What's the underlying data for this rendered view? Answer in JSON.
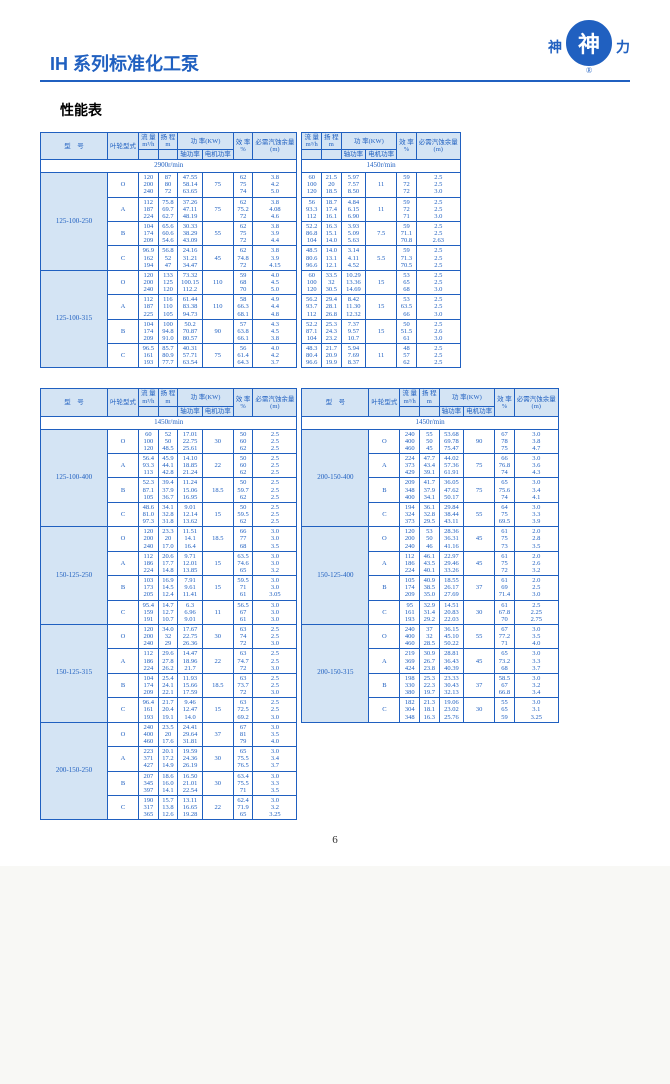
{
  "brand": {
    "left_char": "神",
    "center_char": "神",
    "right_char": "力"
  },
  "heading": "IH 系列标准化工泵",
  "subheading": "性能表",
  "page_number": "6",
  "headers": {
    "model": "型　号",
    "impeller": "叶轮型式",
    "flow": "流 量",
    "flow_unit": "m³/h",
    "head": "扬 程",
    "head_unit": "m",
    "power": "功 率(KW)",
    "shaft_power": "轴功率",
    "motor_power": "电机功率",
    "eff": "效 率",
    "eff_unit": "%",
    "npsh": "必需汽蚀余量",
    "npsh_unit": "(m)"
  },
  "rpm": {
    "r2900": "2900r/min",
    "r1450": "1450r/min"
  },
  "colors": {
    "border": "#2060c0",
    "header_bg": "#d4e4f4",
    "text": "#2060c0"
  },
  "top_left": {
    "models": [
      {
        "name": "125-100-250",
        "rows": [
          {
            "imp": "O",
            "flow": "120\n200\n240",
            "head": "87\n80\n72",
            "sp": "47.55\n58.14\n63.65",
            "mp": "75",
            "eff": "62\n75\n74",
            "npsh": "3.8\n4.2\n5.0"
          },
          {
            "imp": "A",
            "flow": "112\n187\n224",
            "head": "75.8\n69.7\n62.7",
            "sp": "37.26\n47.11\n48.19",
            "mp": "75",
            "eff": "62\n75.2\n72",
            "npsh": "3.8\n4.08\n4.6"
          },
          {
            "imp": "B",
            "flow": "104\n174\n209",
            "head": "65.6\n60.6\n54.6",
            "sp": "30.33\n38.29\n43.09",
            "mp": "55",
            "eff": "62\n75\n72",
            "npsh": "3.8\n3.9\n4.4"
          },
          {
            "imp": "C",
            "flow": "96.9\n162\n194",
            "head": "56.8\n52\n47",
            "sp": "24.16\n31.21\n34.47",
            "mp": "45",
            "eff": "62\n74.8\n72",
            "npsh": "3.8\n3.9\n4.15"
          }
        ]
      },
      {
        "name": "125-100-315",
        "rows": [
          {
            "imp": "O",
            "flow": "120\n200\n240",
            "head": "133\n125\n120",
            "sp": "73.32\n100.15\n112.2",
            "mp": "110",
            "eff": "59\n68\n70",
            "npsh": "4.0\n4.5\n5.0"
          },
          {
            "imp": "A",
            "flow": "112\n187\n225",
            "head": "116\n110\n105",
            "sp": "61.44\n83.38\n94.73",
            "mp": "110",
            "eff": "58\n66.3\n68.1",
            "npsh": "4.9\n4.4\n4.8"
          },
          {
            "imp": "B",
            "flow": "104\n174\n209",
            "head": "100\n94.8\n91.0",
            "sp": "50.2\n70.87\n80.57",
            "mp": "90",
            "eff": "57\n63.8\n66.1",
            "npsh": "4.3\n4.5\n3.8"
          },
          {
            "imp": "C",
            "flow": "96.5\n161\n193",
            "head": "85.7\n80.9\n77.7",
            "sp": "40.31\n57.71\n63.54",
            "mp": "75",
            "eff": "56\n61.4\n64.3",
            "npsh": "4.0\n4.2\n3.7"
          }
        ]
      }
    ]
  },
  "top_right": {
    "models": [
      {
        "rows": [
          {
            "flow": "60\n100\n120",
            "head": "21.5\n20\n18.5",
            "sp": "5.97\n7.57\n8.50",
            "mp": "11",
            "eff": "59\n72\n72",
            "npsh": "2.5\n2.5\n3.0"
          },
          {
            "flow": "56\n93.3\n112",
            "head": "18.7\n17.4\n16.1",
            "sp": "4.84\n6.15\n6.90",
            "mp": "11",
            "eff": "59\n72\n71",
            "npsh": "2.5\n2.5\n3.0"
          },
          {
            "flow": "52.2\n86.8\n104",
            "head": "16.3\n15.1\n14.0",
            "sp": "3.93\n5.09\n5.63",
            "mp": "7.5",
            "eff": "59\n71.1\n70.8",
            "npsh": "2.5\n2.5\n2.63"
          },
          {
            "flow": "48.5\n80.6\n96.6",
            "head": "14.0\n13.1\n12.1",
            "sp": "3.14\n4.11\n4.52",
            "mp": "5.5",
            "eff": "59\n71.3\n70.5",
            "npsh": "2.5\n2.5\n2.5"
          }
        ]
      },
      {
        "rows": [
          {
            "flow": "60\n100\n120",
            "head": "33.5\n32\n30.5",
            "sp": "10.29\n13.36\n14.69",
            "mp": "15",
            "eff": "53\n65\n68",
            "npsh": "2.5\n2.5\n3.0"
          },
          {
            "flow": "56.2\n93.7\n112",
            "head": "29.4\n28.1\n26.8",
            "sp": "8.42\n11.30\n12.32",
            "mp": "15",
            "eff": "53\n63.5\n66",
            "npsh": "2.5\n2.5\n3.0"
          },
          {
            "flow": "52.2\n87.1\n104",
            "head": "25.3\n24.3\n23.2",
            "sp": "7.37\n9.57\n10.7",
            "mp": "15",
            "eff": "50\n51.5\n61",
            "npsh": "2.5\n2.6\n3.0"
          },
          {
            "flow": "48.3\n80.4\n96.6",
            "head": "21.7\n20.9\n19.9",
            "sp": "5.94\n7.69\n8.37",
            "mp": "11",
            "eff": "48\n57\n62",
            "npsh": "2.5\n2.5\n2.5"
          }
        ]
      }
    ]
  },
  "bottom_left": {
    "models": [
      {
        "name": "125-100-400",
        "rows": [
          {
            "imp": "O",
            "flow": "60\n100\n120",
            "head": "52\n50\n48.5",
            "sp": "17.01\n22.75\n25.61",
            "mp": "30",
            "eff": "50\n60\n62",
            "npsh": "2.5\n2.5\n2.5"
          },
          {
            "imp": "A",
            "flow": "56.4\n93.3\n113",
            "head": "45.9\n44.1\n42.8",
            "sp": "14.10\n18.85\n21.24",
            "mp": "22",
            "eff": "50\n60\n62",
            "npsh": "2.5\n2.5\n2.5"
          },
          {
            "imp": "B",
            "flow": "52.3\n87.1\n105",
            "head": "39.4\n37.9\n36.7",
            "sp": "11.24\n15.06\n16.95",
            "mp": "18.5",
            "eff": "50\n59.7\n62",
            "npsh": "2.5\n2.5\n2.5"
          },
          {
            "imp": "C",
            "flow": "48.6\n81.0\n97.3",
            "head": "34.1\n32.8\n31.8",
            "sp": "9.01\n12.14\n13.62",
            "mp": "15",
            "eff": "50\n59.5\n62",
            "npsh": "2.5\n2.5\n2.5"
          }
        ]
      },
      {
        "name": "150-125-250",
        "rows": [
          {
            "imp": "O",
            "flow": "120\n200\n240",
            "head": "23.3\n20\n17.0",
            "sp": "11.51\n14.1\n16.4",
            "mp": "18.5",
            "eff": "66\n77\n68",
            "npsh": "3.0\n3.0\n3.5"
          },
          {
            "imp": "A",
            "flow": "112\n186\n224",
            "head": "20.6\n17.7\n14.8",
            "sp": "9.71\n12.01\n13.85",
            "mp": "15",
            "eff": "63.5\n74.6\n65",
            "npsh": "3.0\n3.0\n3.2"
          },
          {
            "imp": "B",
            "flow": "103\n173\n205",
            "head": "16.9\n14.5\n12.4",
            "sp": "7.91\n9.61\n11.41",
            "mp": "15",
            "eff": "59.5\n71\n61",
            "npsh": "3.0\n3.0\n3.05"
          },
          {
            "imp": "C",
            "flow": "95.4\n159\n191",
            "head": "14.7\n12.7\n10.7",
            "sp": "6.3\n6.96\n9.01",
            "mp": "11",
            "eff": "56.5\n67\n61",
            "npsh": "3.0\n3.0\n3.0"
          }
        ]
      },
      {
        "name": "150-125-315",
        "rows": [
          {
            "imp": "O",
            "flow": "120\n200\n240",
            "head": "34.0\n32\n29",
            "sp": "17.67\n22.75\n26.36",
            "mp": "30",
            "eff": "63\n74\n72",
            "npsh": "2.5\n2.5\n3.0"
          },
          {
            "imp": "A",
            "flow": "112\n186\n224",
            "head": "29.6\n27.8\n26.2",
            "sp": "14.47\n18.96\n21.7",
            "mp": "22",
            "eff": "63\n74.7\n72",
            "npsh": "2.5\n2.5\n3.0"
          },
          {
            "imp": "B",
            "flow": "104\n174\n209",
            "head": "25.4\n24.1\n22.1",
            "sp": "11.93\n15.66\n17.59",
            "mp": "18.5",
            "eff": "63\n73.7\n72",
            "npsh": "2.5\n2.5\n3.0"
          },
          {
            "imp": "C",
            "flow": "96.4\n161\n193",
            "head": "21.7\n20.4\n19.1",
            "sp": "9.46\n12.47\n14.0",
            "mp": "15",
            "eff": "63\n72.5\n69.2",
            "npsh": "2.5\n2.5\n3.0"
          }
        ]
      },
      {
        "name": "200-150-250",
        "rows": [
          {
            "imp": "O",
            "flow": "240\n400\n460",
            "head": "23.5\n20\n17.6",
            "sp": "24.41\n29.64\n31.81",
            "mp": "37",
            "eff": "67\n81\n79",
            "npsh": "3.0\n3.5\n4.0"
          },
          {
            "imp": "A",
            "flow": "223\n371\n427",
            "head": "20.1\n17.2\n14.9",
            "sp": "19.59\n24.36\n26.19",
            "mp": "30",
            "eff": "65\n75.5\n76.5",
            "npsh": "3.0\n3.4\n3.7"
          },
          {
            "imp": "B",
            "flow": "207\n345\n397",
            "head": "18.6\n16.0\n14.1",
            "sp": "16.50\n21.01\n22.54",
            "mp": "30",
            "eff": "63.4\n75.5\n71",
            "npsh": "3.0\n3.3\n3.5"
          },
          {
            "imp": "C",
            "flow": "190\n317\n365",
            "head": "15.7\n13.8\n12.6",
            "sp": "13.11\n16.65\n19.28",
            "mp": "22",
            "eff": "62.4\n71.9\n65",
            "npsh": "3.0\n3.2\n3.25"
          }
        ]
      }
    ]
  },
  "bottom_right": {
    "models": [
      {
        "name": "200-150-400",
        "rows": [
          {
            "imp": "O",
            "flow": "240\n400\n460",
            "head": "55\n50\n45",
            "sp": "53.68\n69.78\n75.47",
            "mp": "90",
            "eff": "67\n78\n75",
            "npsh": "3.0\n3.8\n4.7"
          },
          {
            "imp": "A",
            "flow": "224\n373\n429",
            "head": "47.7\n43.4\n39.1",
            "sp": "44.02\n57.36\n61.91",
            "mp": "75",
            "eff": "66\n76.8\n74",
            "npsh": "3.0\n3.6\n4.3"
          },
          {
            "imp": "B",
            "flow": "209\n348\n400",
            "head": "41.7\n37.9\n34.1",
            "sp": "36.05\n47.62\n50.17",
            "mp": "75",
            "eff": "65\n75.6\n74",
            "npsh": "3.0\n3.4\n4.1"
          },
          {
            "imp": "C",
            "flow": "194\n324\n373",
            "head": "36.1\n32.8\n29.5",
            "sp": "29.84\n38.44\n43.11",
            "mp": "55",
            "eff": "64\n75\n69.5",
            "npsh": "3.0\n3.3\n3.9"
          }
        ]
      },
      {
        "name": "150-125-400",
        "rows": [
          {
            "imp": "O",
            "flow": "120\n200\n240",
            "head": "53\n50\n46",
            "sp": "28.36\n36.31\n41.16",
            "mp": "45",
            "eff": "61\n75\n73",
            "npsh": "2.0\n2.8\n3.5"
          },
          {
            "imp": "A",
            "flow": "112\n186\n224",
            "head": "46.1\n43.5\n40.1",
            "sp": "22.97\n29.46\n33.26",
            "mp": "45",
            "eff": "61\n75\n72",
            "npsh": "2.0\n2.6\n3.2"
          },
          {
            "imp": "B",
            "flow": "105\n174\n209",
            "head": "40.9\n38.5\n35.0",
            "sp": "18.55\n26.17\n27.69",
            "mp": "37",
            "eff": "61\n69\n71.4",
            "npsh": "2.0\n2.5\n3.0"
          },
          {
            "imp": "C",
            "flow": "95\n161\n193",
            "head": "32.9\n31.4\n29.2",
            "sp": "14.51\n20.83\n22.03",
            "mp": "30",
            "eff": "61\n67.8\n70",
            "npsh": "2.5\n2.25\n2.75"
          }
        ]
      },
      {
        "name": "200-150-315",
        "rows": [
          {
            "imp": "O",
            "flow": "240\n400\n460",
            "head": "37\n32\n28.5",
            "sp": "36.15\n45.10\n50.22",
            "mp": "55",
            "eff": "67\n77.2\n71",
            "npsh": "3.0\n3.5\n4.0"
          },
          {
            "imp": "A",
            "flow": "219\n369\n424",
            "head": "30.9\n26.7\n23.8",
            "sp": "28.81\n36.43\n40.39",
            "mp": "45",
            "eff": "65\n73.2\n68",
            "npsh": "3.0\n3.3\n3.7"
          },
          {
            "imp": "B",
            "flow": "198\n330\n380",
            "head": "25.3\n22.3\n19.7",
            "sp": "23.33\n30.43\n32.13",
            "mp": "37",
            "eff": "58.5\n67\n66.8",
            "npsh": "3.0\n3.2\n3.4"
          },
          {
            "imp": "C",
            "flow": "182\n304\n348",
            "head": "21.3\n18.1\n16.3",
            "sp": "19.06\n23.02\n25.76",
            "mp": "30",
            "eff": "55\n65\n59",
            "npsh": "3.0\n3.1\n3.25"
          }
        ]
      }
    ]
  }
}
